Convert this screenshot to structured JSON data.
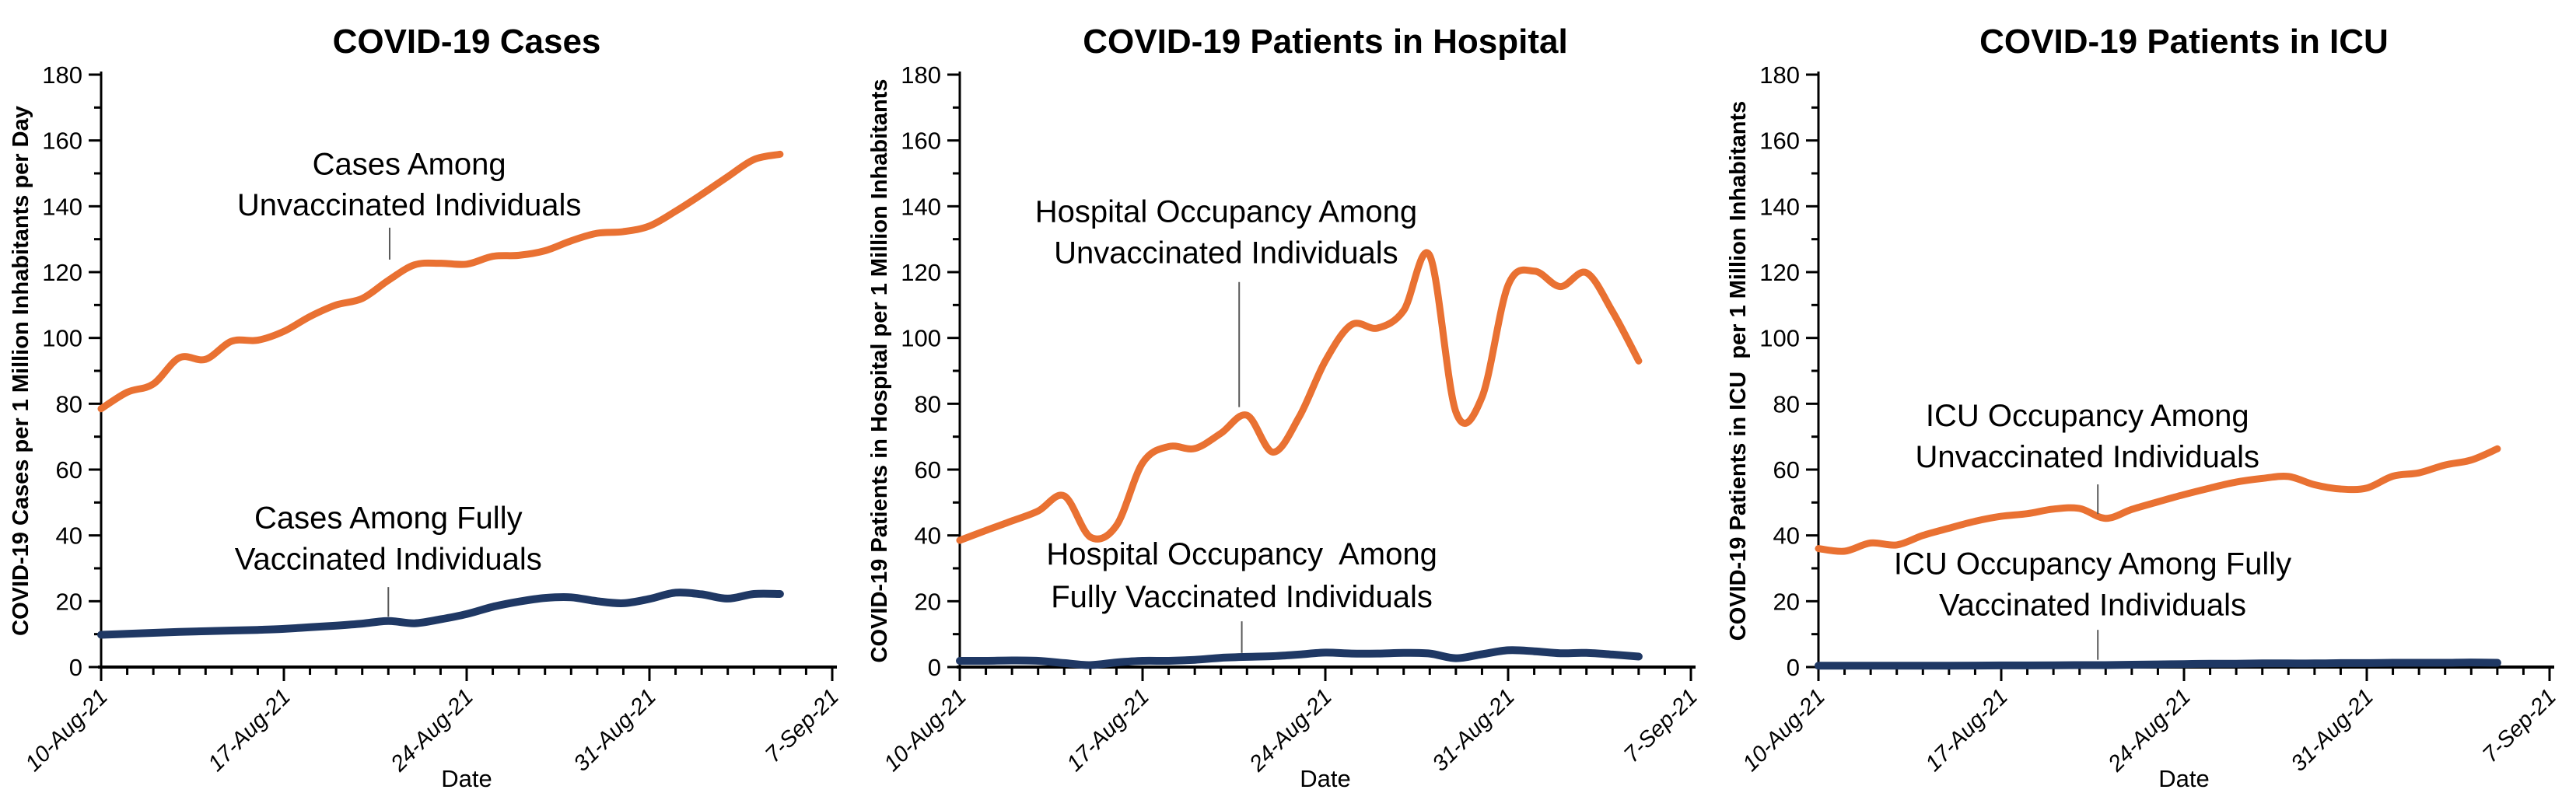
{
  "page": {
    "background": "#ffffff",
    "axis_color": "#000000",
    "leader_color": "#595959"
  },
  "chart_data": [
    {
      "type": "line",
      "title": "COVID-19 Cases",
      "xlabel": "Date",
      "ylabel": "COVID-19 Cases per 1 Million Inhabitants per Day",
      "ylim": [
        0,
        180
      ],
      "y_tick_step": 20,
      "y_minor_step": 10,
      "grid": false,
      "x_tick_labels": [
        "10-Aug-21",
        "17-Aug-21",
        "24-Aug-21",
        "31-Aug-21",
        "7-Sep-21"
      ],
      "x_major_days": [
        0,
        7,
        14,
        21,
        28
      ],
      "x_range_days": 28,
      "series": [
        {
          "name": "Cases Among Unvaccinated Individuals",
          "color": "#E97132",
          "values": [
            78.5,
            83.5,
            86,
            94,
            93.5,
            99,
            99.3,
            102,
            106.5,
            110,
            112,
            117.5,
            122.2,
            122.7,
            122.4,
            124.8,
            125.1,
            126.5,
            129.5,
            131.8,
            132.3,
            134,
            138.5,
            143.6,
            149,
            154.2,
            155.8
          ]
        },
        {
          "name": "Cases Among Fully Vaccinated Individuals",
          "color": "#1F3864",
          "values": [
            9.8,
            10.1,
            10.4,
            10.7,
            10.9,
            11.1,
            11.3,
            11.6,
            12.1,
            12.6,
            13.2,
            14,
            13.3,
            14.5,
            16.1,
            18.3,
            19.9,
            21,
            21.2,
            20,
            19.4,
            20.7,
            22.6,
            22.1,
            20.8,
            22.2,
            22.2
          ]
        }
      ],
      "annotations": [
        {
          "lines": [
            "Cases Among",
            "Unvaccinated Individuals"
          ],
          "x_day": 11.8,
          "row_values": [
            153,
            140.5
          ],
          "leader": {
            "x_day": 11.05,
            "from_value": 133.5,
            "to_value": 123.8
          }
        },
        {
          "lines": [
            "Cases Among Fully",
            "Vaccinated Individuals"
          ],
          "x_day": 11,
          "row_values": [
            45.5,
            33
          ],
          "leader": {
            "x_day": 11,
            "from_value": 24.3,
            "to_value": 15.3
          }
        }
      ]
    },
    {
      "type": "line",
      "title": "COVID-19 Patients in Hospital",
      "xlabel": "Date",
      "ylabel": "COVID-19 Patients in Hospital per 1 Million Inhabitants",
      "ylim": [
        0,
        180
      ],
      "y_tick_step": 20,
      "y_minor_step": 10,
      "grid": false,
      "x_tick_labels": [
        "10-Aug-21",
        "17-Aug-21",
        "24-Aug-21",
        "31-Aug-21",
        "7-Sep-21"
      ],
      "x_major_days": [
        0,
        7,
        14,
        21,
        28
      ],
      "x_range_days": 28,
      "series": [
        {
          "name": "Hospital Occupancy Among Unvaccinated Individuals",
          "color": "#E97132",
          "values": [
            38.5,
            41.5,
            44.4,
            47.4,
            52,
            39.5,
            43,
            62,
            67,
            66.4,
            71,
            76.5,
            65.3,
            76,
            93,
            104,
            103,
            108.3,
            125,
            77.5,
            82,
            116,
            120.3,
            115.6,
            119.8,
            108,
            93
          ]
        },
        {
          "name": "Hospital Occupancy Among Fully Vaccinated Individuals",
          "color": "#1F3864",
          "values": [
            1.9,
            1.9,
            2,
            1.9,
            1.2,
            0.6,
            1.4,
            1.9,
            1.9,
            2.2,
            2.8,
            3.1,
            3.3,
            3.8,
            4.4,
            4.1,
            4.1,
            4.3,
            4.1,
            2.7,
            3.9,
            5.1,
            4.8,
            4.2,
            4.3,
            3.8,
            3.2
          ]
        }
      ],
      "annotations": [
        {
          "lines": [
            "Hospital Occupancy Among",
            "Unvaccinated Individuals"
          ],
          "x_day": 10.2,
          "row_values": [
            138.5,
            126
          ],
          "leader": {
            "x_day": 10.7,
            "from_value": 117,
            "to_value": 79
          }
        },
        {
          "lines": [
            "Hospital Occupancy  Among",
            "Fully Vaccinated Individuals"
          ],
          "x_day": 10.8,
          "row_values": [
            34.5,
            21.5
          ],
          "leader": {
            "x_day": 10.8,
            "from_value": 13.9,
            "to_value": 4.3
          }
        }
      ]
    },
    {
      "type": "line",
      "title": "COVID-19 Patients in ICU",
      "xlabel": "Date",
      "ylabel": "COVID-19 Patients in ICU  per 1 Million Inhabitants",
      "ylim": [
        0,
        180
      ],
      "y_tick_step": 20,
      "y_minor_step": 10,
      "grid": false,
      "x_tick_labels": [
        "10-Aug-21",
        "17-Aug-21",
        "24-Aug-21",
        "31-Aug-21",
        "7-Sep-21"
      ],
      "x_major_days": [
        0,
        7,
        14,
        21,
        28
      ],
      "x_range_days": 28,
      "series": [
        {
          "name": "ICU Occupancy Among Unvaccinated Individuals",
          "color": "#E97132",
          "values": [
            36,
            35.2,
            37.7,
            37.1,
            40,
            42.2,
            44.3,
            45.8,
            46.6,
            48,
            48.2,
            45.2,
            47.9,
            50.2,
            52.4,
            54.4,
            56.2,
            57.3,
            57.9,
            55.4,
            54.1,
            54.4,
            58,
            59,
            61.4,
            62.9,
            66.3
          ]
        },
        {
          "name": "ICU Occupancy Among Fully Vaccinated Individuals",
          "color": "#1F3864",
          "values": [
            0.4,
            0.4,
            0.4,
            0.4,
            0.4,
            0.4,
            0.45,
            0.5,
            0.5,
            0.55,
            0.6,
            0.6,
            0.7,
            0.8,
            0.9,
            1,
            1,
            1.1,
            1.1,
            1.1,
            1.2,
            1.2,
            1.3,
            1.3,
            1.3,
            1.4,
            1.3
          ]
        }
      ],
      "annotations": [
        {
          "lines": [
            "ICU Occupancy Among",
            "Unvaccinated Individuals"
          ],
          "x_day": 10.3,
          "row_values": [
            76.5,
            64
          ],
          "leader": {
            "x_day": 10.7,
            "from_value": 55.5,
            "to_value": 46.5
          }
        },
        {
          "lines": [
            "ICU Occupancy Among Fully",
            "Vaccinated Individuals"
          ],
          "x_day": 10.5,
          "row_values": [
            31.5,
            19
          ],
          "leader": {
            "x_day": 10.7,
            "from_value": 11.3,
            "to_value": 2.2
          }
        }
      ]
    }
  ]
}
